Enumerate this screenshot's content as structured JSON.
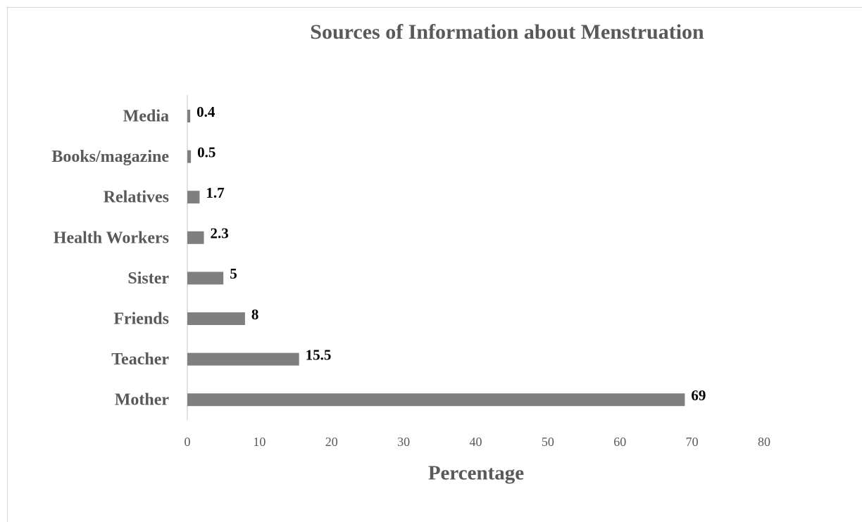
{
  "chart_data": {
    "type": "bar",
    "orientation": "horizontal",
    "title": "Sources of Information about Menstruation",
    "x_label": "Percentage",
    "categories": [
      "Media",
      "Books/magazine",
      "Relatives",
      "Health Workers",
      "Sister",
      "Friends",
      "Teacher",
      "Mother"
    ],
    "values": [
      0.4,
      0.5,
      1.7,
      2.3,
      5,
      8,
      15.5,
      69
    ],
    "color": "#7f7f7f",
    "xlim": [
      0,
      80
    ],
    "xticks": [
      0,
      10,
      20,
      30,
      40,
      50,
      60,
      70,
      80
    ],
    "grid": false
  }
}
